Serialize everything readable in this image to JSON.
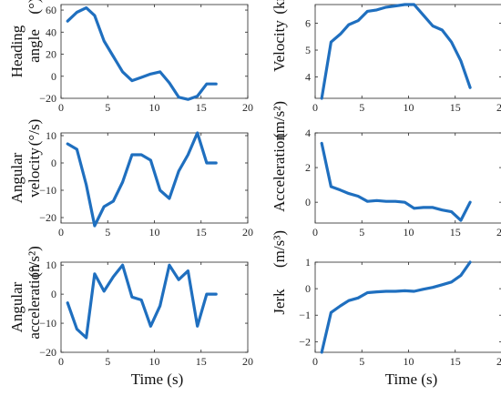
{
  "colors": {
    "line": "#1f6fbf",
    "axis": "#262626",
    "background": "#ffffff"
  },
  "chart_data": [
    {
      "id": "heading",
      "type": "line",
      "ylabel_lines": [
        "Heading",
        "angle"
      ],
      "unit": "(°)",
      "xlabel": "",
      "xlim": [
        0,
        20
      ],
      "ylim": [
        -20,
        65
      ],
      "xticks": [
        0,
        5,
        10,
        15,
        20
      ],
      "yticks": [
        -20,
        0,
        20,
        40,
        60
      ],
      "x": [
        0.7,
        1.7,
        2.7,
        3.6,
        4.6,
        5.6,
        6.6,
        7.6,
        8.6,
        9.6,
        10.6,
        11.6,
        12.6,
        13.6,
        14.6,
        15.6,
        16.6
      ],
      "y": [
        50,
        58,
        62,
        55,
        32,
        18,
        4,
        -4,
        -1,
        2,
        4,
        -6,
        -19,
        -21,
        -18,
        -7,
        -7
      ]
    },
    {
      "id": "velocity",
      "type": "line",
      "ylabel_lines": [
        "Velocity"
      ],
      "unit": "(km/h)",
      "xlabel": "",
      "xlim": [
        0,
        20
      ],
      "ylim": [
        3.2,
        6.7
      ],
      "xticks": [
        0,
        5,
        10,
        15,
        20
      ],
      "yticks": [
        4,
        5,
        6
      ],
      "x": [
        0.7,
        1.7,
        2.7,
        3.6,
        4.6,
        5.6,
        6.6,
        7.6,
        8.6,
        9.6,
        10.6,
        11.6,
        12.6,
        13.6,
        14.6,
        15.6,
        16.6
      ],
      "y": [
        3.2,
        5.3,
        5.6,
        5.95,
        6.1,
        6.45,
        6.5,
        6.6,
        6.65,
        6.7,
        6.7,
        6.3,
        5.9,
        5.75,
        5.3,
        4.6,
        3.6
      ]
    },
    {
      "id": "angular-velocity",
      "type": "line",
      "ylabel_lines": [
        "Angular",
        "velocity"
      ],
      "unit": "(°/s)",
      "xlabel": "",
      "xlim": [
        0,
        20
      ],
      "ylim": [
        -22,
        11
      ],
      "xticks": [
        0,
        5,
        10,
        15,
        20
      ],
      "yticks": [
        -20,
        -10,
        0,
        10
      ],
      "x": [
        0.7,
        1.7,
        2.7,
        3.6,
        4.6,
        5.6,
        6.6,
        7.6,
        8.6,
        9.6,
        10.6,
        11.6,
        12.6,
        13.6,
        14.6,
        15.6,
        16.6
      ],
      "y": [
        7,
        5,
        -8,
        -23,
        -16,
        -14,
        -7,
        3,
        3,
        1,
        -10,
        -13,
        -3,
        3,
        11,
        0,
        0
      ]
    },
    {
      "id": "acceleration",
      "type": "line",
      "ylabel_lines": [
        "Acceleration"
      ],
      "unit": "(m/s²)",
      "xlabel": "",
      "xlim": [
        0,
        20
      ],
      "ylim": [
        -1.2,
        4
      ],
      "xticks": [
        0,
        5,
        10,
        15,
        20
      ],
      "yticks": [
        0,
        2,
        4
      ],
      "x": [
        0.7,
        1.7,
        2.7,
        3.6,
        4.6,
        5.6,
        6.6,
        7.6,
        8.6,
        9.6,
        10.6,
        11.6,
        12.6,
        13.6,
        14.6,
        15.6,
        16.6
      ],
      "y": [
        3.4,
        0.9,
        0.7,
        0.5,
        0.35,
        0.05,
        0.1,
        0.05,
        0.05,
        0.0,
        -0.35,
        -0.3,
        -0.3,
        -0.45,
        -0.55,
        -1.05,
        0.0
      ]
    },
    {
      "id": "angular-acceleration",
      "type": "line",
      "ylabel_lines": [
        "Angular",
        "acceleration"
      ],
      "unit": "(°/s²)",
      "xlabel": "Time (s)",
      "xlim": [
        0,
        20
      ],
      "ylim": [
        -20,
        11
      ],
      "xticks": [
        0,
        5,
        10,
        15,
        20
      ],
      "yticks": [
        -20,
        -10,
        0,
        10
      ],
      "x": [
        0.7,
        1.7,
        2.7,
        3.6,
        4.6,
        5.6,
        6.6,
        7.6,
        8.6,
        9.6,
        10.6,
        11.6,
        12.6,
        13.6,
        14.6,
        15.6,
        16.6
      ],
      "y": [
        -3,
        -12,
        -15,
        7,
        1,
        6,
        10,
        -1,
        -2,
        -11,
        -4,
        10,
        5,
        8,
        -11,
        0,
        0
      ]
    },
    {
      "id": "jerk",
      "type": "line",
      "ylabel_lines": [
        "Jerk"
      ],
      "unit": "(m/s³)",
      "xlabel": "Time (s)",
      "xlim": [
        0,
        20
      ],
      "ylim": [
        -2.4,
        1
      ],
      "xticks": [
        0,
        5,
        10,
        15,
        20
      ],
      "yticks": [
        -2,
        -1,
        0,
        1
      ],
      "x": [
        0.7,
        1.7,
        2.7,
        3.6,
        4.6,
        5.6,
        6.6,
        7.6,
        8.6,
        9.6,
        10.6,
        11.6,
        12.6,
        13.6,
        14.6,
        15.6,
        16.6
      ],
      "y": [
        -2.4,
        -0.9,
        -0.65,
        -0.45,
        -0.35,
        -0.15,
        -0.12,
        -0.1,
        -0.1,
        -0.08,
        -0.1,
        -0.02,
        0.05,
        0.15,
        0.25,
        0.5,
        1.0
      ]
    }
  ]
}
